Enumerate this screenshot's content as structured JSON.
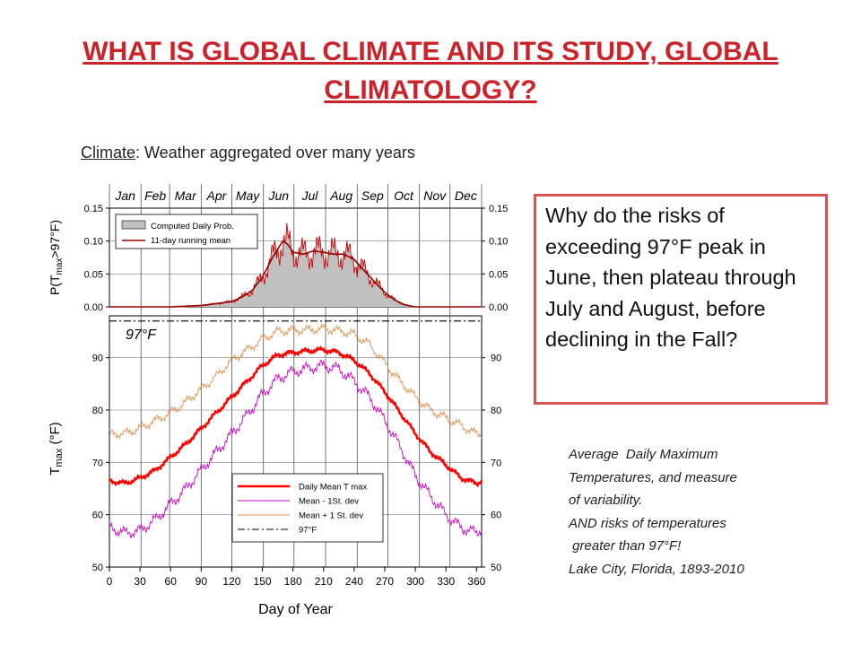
{
  "slide": {
    "title": "WHAT IS GLOBAL CLIMATE AND ITS STUDY, GLOBAL CLIMATOLOGY?",
    "subtitle_term": "Climate",
    "subtitle_rest": ": Weather aggregated over many years",
    "question": "Why do the risks of exceeding 97°F peak in June, then plateau through July and August, before declining in the Fall?",
    "caption_lines": [
      "Average  Daily Maximum",
      "Temperatures, and measure",
      "of variability.",
      "AND risks of temperatures",
      " greater than 97°F!",
      "Lake City, Florida, 1893-2010"
    ]
  },
  "colors": {
    "title": "#cc2229",
    "box_border": "#d9534f",
    "mean": "#ff0000",
    "minus_sd": "#cc00cc",
    "plus_sd": "#e0904a",
    "prob_fill": "#c0c0c0",
    "running_mean": "#990000"
  },
  "chart_data": [
    {
      "type": "area",
      "ylabel": "P(T max>97°F)",
      "xlim": [
        0,
        365
      ],
      "ylim": [
        0,
        0.15
      ],
      "yticks": [
        "0.00",
        "0.05",
        "0.10",
        "0.15"
      ],
      "month_labels": [
        "Jan",
        "Feb",
        "Mar",
        "Apr",
        "May",
        "Jun",
        "Jul",
        "Aug",
        "Sep",
        "Oct",
        "Nov",
        "Dec"
      ],
      "legend": [
        "Computed Daily Prob.",
        "11-day running mean"
      ],
      "legend_position": "top-left",
      "grid": true,
      "series": [
        {
          "name": "11-day running mean",
          "x": [
            0,
            60,
            90,
            105,
            120,
            130,
            140,
            150,
            160,
            170,
            175,
            180,
            190,
            200,
            210,
            220,
            230,
            240,
            250,
            260,
            270,
            280,
            290,
            300,
            365
          ],
          "y": [
            0,
            0,
            0.002,
            0.005,
            0.008,
            0.015,
            0.025,
            0.045,
            0.075,
            0.1,
            0.095,
            0.083,
            0.08,
            0.085,
            0.083,
            0.08,
            0.08,
            0.072,
            0.055,
            0.038,
            0.022,
            0.01,
            0.003,
            0,
            0
          ]
        }
      ]
    },
    {
      "type": "line",
      "xlabel": "Day of Year",
      "ylabel": "T max (°F)",
      "xlim": [
        0,
        365
      ],
      "ylim": [
        50,
        98
      ],
      "xticks": [
        0,
        30,
        60,
        90,
        120,
        150,
        180,
        210,
        240,
        270,
        300,
        330,
        360
      ],
      "yticks": [
        50,
        60,
        70,
        80,
        90
      ],
      "threshold_label": "97°F",
      "legend": [
        "Daily Mean T max",
        "Mean - 1St. dev",
        "Mean + 1 St. dev",
        "97°F"
      ],
      "legend_position": "bottom-center",
      "grid": true,
      "series": [
        {
          "name": "Daily Mean T max",
          "x": [
            0,
            15,
            30,
            45,
            60,
            75,
            90,
            105,
            120,
            135,
            150,
            165,
            180,
            195,
            210,
            225,
            240,
            255,
            270,
            285,
            300,
            315,
            330,
            345,
            360,
            365
          ],
          "y": [
            66.5,
            66,
            67,
            68.5,
            71,
            73.5,
            76.5,
            79.5,
            82.5,
            85.5,
            88.5,
            90.5,
            91,
            91.3,
            91.5,
            91,
            89.5,
            87,
            83.5,
            79.5,
            75.5,
            72,
            69.5,
            67,
            66,
            66.5
          ]
        },
        {
          "name": "Mean - 1St. dev",
          "x": [
            0,
            15,
            30,
            45,
            60,
            75,
            90,
            105,
            120,
            135,
            150,
            165,
            180,
            195,
            210,
            225,
            240,
            255,
            270,
            285,
            300,
            315,
            330,
            345,
            360,
            365
          ],
          "y": [
            57.5,
            56.5,
            57,
            59,
            62,
            65,
            68.5,
            72,
            75.5,
            79,
            83,
            86,
            87.3,
            88,
            88.5,
            87.8,
            85.5,
            82.5,
            78,
            73,
            67.5,
            63.5,
            60,
            57.5,
            56.5,
            57.5
          ]
        },
        {
          "name": "Mean + 1 St. dev",
          "x": [
            0,
            15,
            30,
            45,
            60,
            75,
            90,
            105,
            120,
            135,
            150,
            165,
            180,
            195,
            210,
            225,
            240,
            255,
            270,
            285,
            300,
            315,
            330,
            345,
            360,
            365
          ],
          "y": [
            75.5,
            75.5,
            76.5,
            78,
            79.5,
            81.5,
            84,
            86.5,
            89.5,
            91.5,
            93.5,
            95,
            95.3,
            95.3,
            95.5,
            95.2,
            94.5,
            92.5,
            89,
            85.5,
            82.5,
            80,
            78.5,
            77,
            75.5,
            75.5
          ]
        },
        {
          "name": "97°F",
          "x": [
            0,
            365
          ],
          "y": [
            97,
            97
          ]
        }
      ]
    }
  ]
}
